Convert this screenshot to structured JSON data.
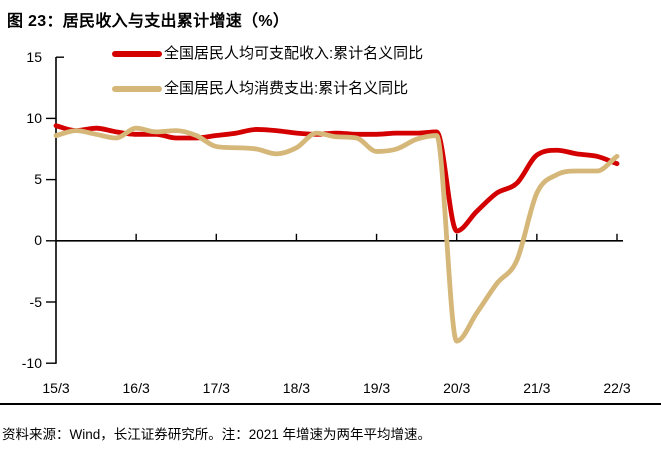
{
  "figure": {
    "title": "图 23：居民收入与支出累计增速（%）",
    "footer": "资料来源：Wind，长江证券研究所。注：2021 年增速为两年平均增速。"
  },
  "colors": {
    "income_line": "#d40000",
    "consumption_line": "#d6b77a",
    "axis": "#000000",
    "text": "#000000",
    "background": "#ffffff"
  },
  "chart_data": {
    "type": "line",
    "title": "居民收入与支出累计增速（%）",
    "grid": false,
    "legend_position": "top",
    "ylim": [
      -10,
      15
    ],
    "y_ticks": [
      15,
      10,
      5,
      0,
      -5,
      -10
    ],
    "y_tick_labels": [
      "15",
      "10",
      "5",
      "0",
      "-5",
      "-10"
    ],
    "x_tick_labels": [
      "15/3",
      "16/3",
      "17/3",
      "18/3",
      "19/3",
      "20/3",
      "21/3",
      "22/3"
    ],
    "x": [
      "15/3",
      "15/6",
      "15/9",
      "15/12",
      "16/3",
      "16/6",
      "16/9",
      "16/12",
      "17/3",
      "17/6",
      "17/9",
      "17/12",
      "18/3",
      "18/6",
      "18/9",
      "18/12",
      "19/3",
      "19/6",
      "19/9",
      "19/12",
      "20/3",
      "20/6",
      "20/9",
      "20/12",
      "21/3",
      "21/6",
      "21/9",
      "21/12",
      "22/3"
    ],
    "series": [
      {
        "name": "全国居民人均可支配收入:累计名义同比",
        "color_key": "income_line",
        "values": [
          9.4,
          9.0,
          9.2,
          8.9,
          8.7,
          8.7,
          8.4,
          8.4,
          8.6,
          8.8,
          9.1,
          9.0,
          8.8,
          8.7,
          8.8,
          8.7,
          8.7,
          8.8,
          8.8,
          8.9,
          0.8,
          2.4,
          3.9,
          4.7,
          7.0,
          7.4,
          7.1,
          6.9,
          6.3
        ]
      },
      {
        "name": "全国居民人均消费支出:累计名义同比",
        "color_key": "consumption_line",
        "values": [
          8.6,
          9.0,
          8.7,
          8.4,
          9.2,
          8.9,
          9.0,
          8.6,
          7.7,
          7.6,
          7.5,
          7.1,
          7.6,
          8.8,
          8.5,
          8.4,
          7.3,
          7.5,
          8.3,
          8.6,
          -8.2,
          -5.9,
          -3.5,
          -1.6,
          3.9,
          5.4,
          5.7,
          5.7,
          6.9
        ]
      }
    ]
  }
}
